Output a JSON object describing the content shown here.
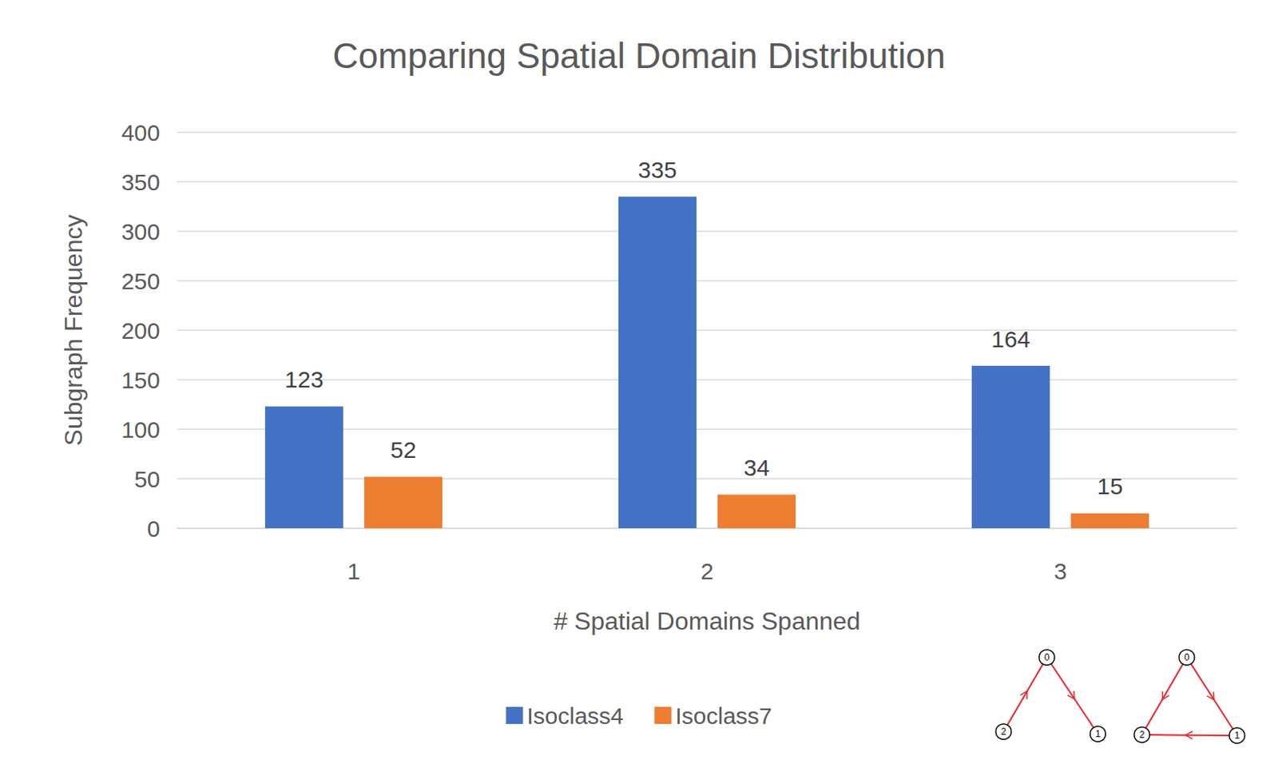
{
  "chart_data": {
    "type": "bar",
    "title": "Comparing Spatial Domain Distribution",
    "x_label": "# Spatial Domains Spanned",
    "y_label": "Subgraph Frequency",
    "categories": [
      "1",
      "2",
      "3"
    ],
    "series": [
      {
        "name": "Isoclass4",
        "color": "#4472c4",
        "values": [
          123,
          335,
          164
        ]
      },
      {
        "name": "Isoclass7",
        "color": "#ed7d31",
        "values": [
          52,
          34,
          15
        ]
      }
    ],
    "ylim": [
      0,
      400
    ],
    "yticks": [
      0,
      50,
      100,
      150,
      200,
      250,
      300,
      350,
      400
    ],
    "grid": true,
    "legend": "bottom",
    "data_labels": true,
    "annotations": [
      "0",
      "1",
      "2"
    ]
  }
}
